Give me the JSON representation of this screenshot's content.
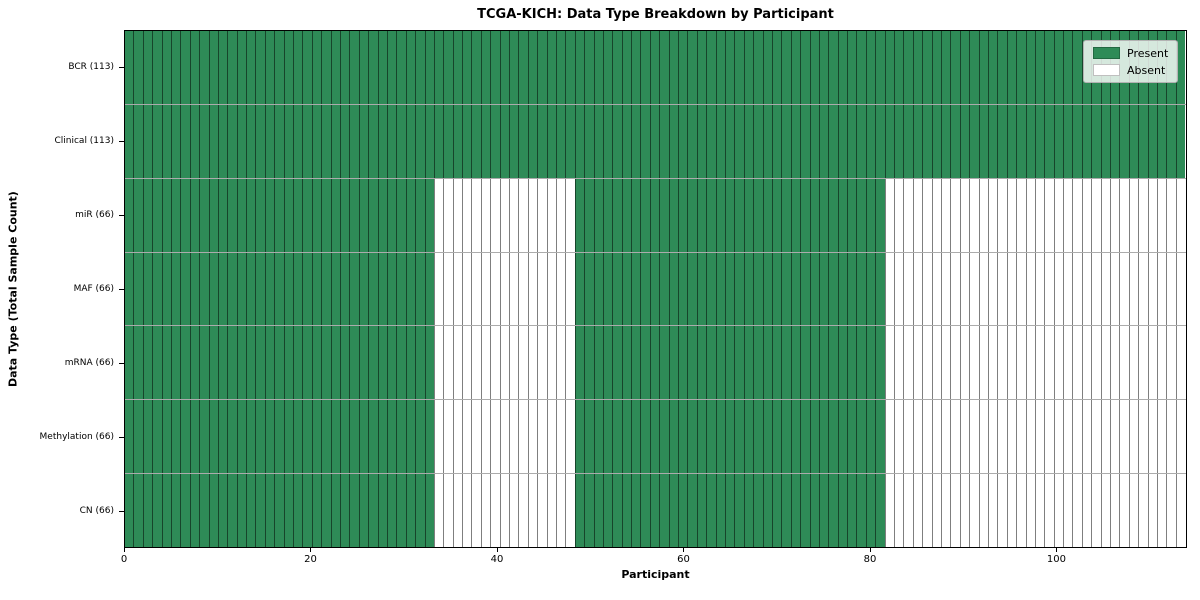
{
  "chart_data": {
    "type": "heatmap",
    "title": "TCGA-KICH: Data Type Breakdown by Participant",
    "xlabel": "Participant",
    "ylabel": "Data Type (Total Sample Count)",
    "n_participants": 113,
    "xlim": [
      0,
      114
    ],
    "x_ticks": [
      0,
      20,
      40,
      60,
      80,
      100
    ],
    "grid": "cell-borders",
    "legend_position": "upper right",
    "legend": [
      {
        "label": "Present",
        "color": "#2e8b57"
      },
      {
        "label": "Absent",
        "color": "#ffffff"
      }
    ],
    "colors": {
      "present": "#2e8b57",
      "absent": "#ffffff",
      "cell_edge": "rgba(0,0,0,0.5)"
    },
    "rows": [
      {
        "label": "BCR (113)",
        "data_type": "BCR",
        "total_samples": 113,
        "present_ranges": [
          [
            0,
            113
          ]
        ]
      },
      {
        "label": "Clinical (113)",
        "data_type": "Clinical",
        "total_samples": 113,
        "present_ranges": [
          [
            0,
            113
          ]
        ]
      },
      {
        "label": "miR (66)",
        "data_type": "miR",
        "total_samples": 66,
        "present_ranges": [
          [
            0,
            33
          ],
          [
            48,
            81
          ]
        ]
      },
      {
        "label": "MAF (66)",
        "data_type": "MAF",
        "total_samples": 66,
        "present_ranges": [
          [
            0,
            33
          ],
          [
            48,
            81
          ]
        ]
      },
      {
        "label": "mRNA (66)",
        "data_type": "mRNA",
        "total_samples": 66,
        "present_ranges": [
          [
            0,
            33
          ],
          [
            48,
            81
          ]
        ]
      },
      {
        "label": "Methylation (66)",
        "data_type": "Methylation",
        "total_samples": 66,
        "present_ranges": [
          [
            0,
            33
          ],
          [
            48,
            81
          ]
        ]
      },
      {
        "label": "CN (66)",
        "data_type": "CN",
        "total_samples": 66,
        "present_ranges": [
          [
            0,
            33
          ],
          [
            48,
            81
          ]
        ]
      }
    ]
  }
}
